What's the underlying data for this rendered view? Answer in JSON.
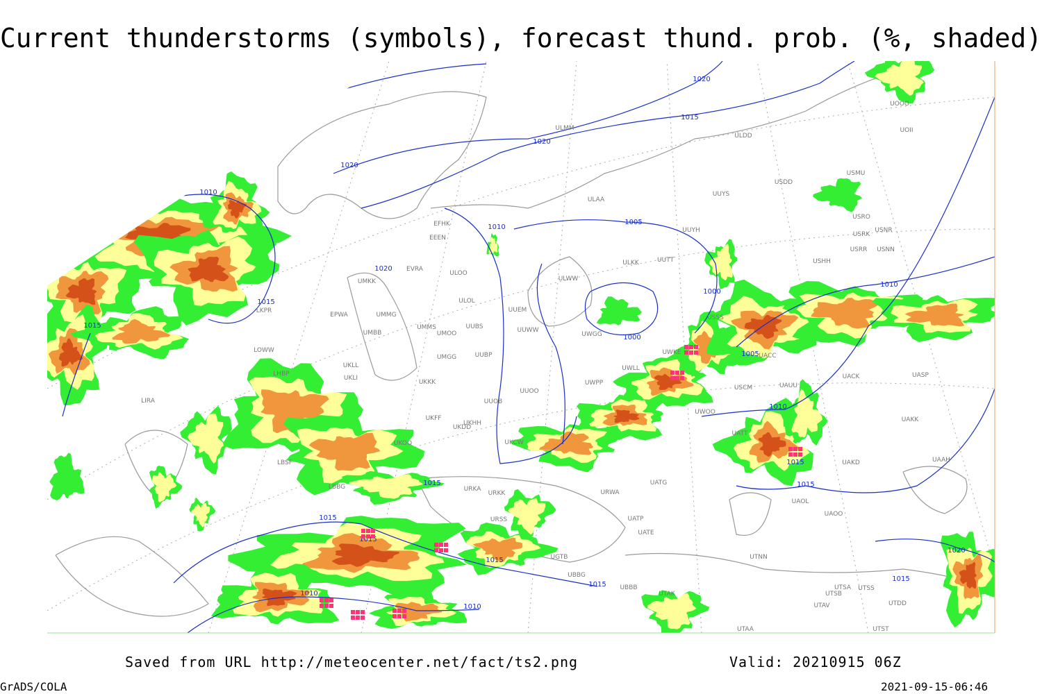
{
  "title": "Current thunderstorms (symbols), forecast thund. prob. (%, shaded)",
  "isobar_labels": [
    "1010",
    "1015",
    "1015",
    "1020",
    "1020",
    "1020",
    "1020",
    "1015",
    "1010",
    "1005",
    "1000",
    "1000",
    "1005",
    "1010",
    "1010",
    "1015",
    "1015",
    "1015",
    "1015",
    "1015",
    "1015",
    "1015",
    "1010",
    "1010",
    "1020",
    "1015"
  ],
  "stations": [
    "ULMM",
    "ULDD",
    "UOII",
    "UOOO",
    "USMU",
    "USDD",
    "UUYS",
    "ULAA",
    "USRO",
    "USRK",
    "USNR",
    "USRR",
    "USNN",
    "USHH",
    "UUYH",
    "ULKK",
    "UUTT",
    "ULWW",
    "EFHK",
    "EEEN",
    "EVRA",
    "UMKK",
    "ULOO",
    "ULOL",
    "UUEM",
    "UUWW",
    "EPWA",
    "UMMG",
    "UMMS",
    "UMOO",
    "UUBS",
    "UMBB",
    "UWGG",
    "USSS",
    "UMGG",
    "UUBP",
    "UWKE",
    "UWLL",
    "UACC",
    "UKLL",
    "UKLI",
    "UKKK",
    "UWPP",
    "USCM",
    "UAUU",
    "UACK",
    "UASP",
    "UUOO",
    "UUOB",
    "UKHH",
    "LKPR",
    "LOWW",
    "LHBP",
    "LIRA",
    "LBSF",
    "LBBG",
    "UKOO",
    "UKFF",
    "UKDD",
    "UKCW",
    "URKA",
    "URKK",
    "URWA",
    "UATG",
    "UATT",
    "UWOO",
    "UAOL",
    "UAOO",
    "UAKD",
    "UAAH",
    "UAKK",
    "UTAK",
    "UBBB",
    "UTNN",
    "UTSA",
    "UTSB",
    "UTSS",
    "UTAV",
    "UTAA",
    "UTDD",
    "UTST",
    "URSS",
    "UGTB",
    "UBBG",
    "UATE",
    "UATP"
  ],
  "footer": {
    "source": "Saved from URL http://meteocenter.net/fact/ts2.png",
    "valid": "Valid: 20210915 06Z",
    "software": "GrADS/COLA",
    "timestamp": "2021-09-15-06:46"
  }
}
